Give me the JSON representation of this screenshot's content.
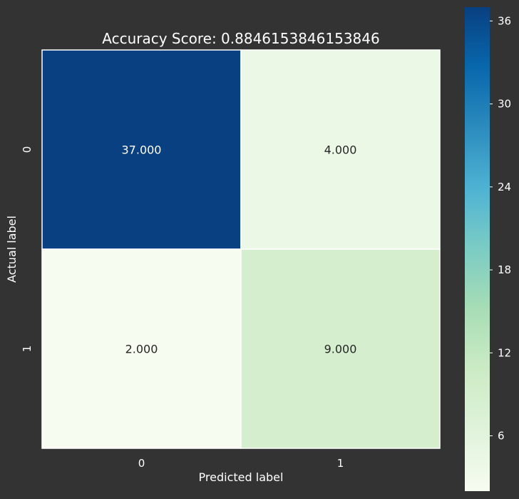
{
  "chart_data": {
    "type": "heatmap",
    "title": "Accuracy Score: 0.8846153846153846",
    "xlabel": "Predicted label",
    "ylabel": "Actual label",
    "x_categories": [
      "0",
      "1"
    ],
    "y_categories": [
      "0",
      "1"
    ],
    "values": [
      [
        37,
        4
      ],
      [
        2,
        9
      ]
    ],
    "cell_labels": [
      [
        "37.000",
        "4.000"
      ],
      [
        "2.000",
        "9.000"
      ]
    ],
    "colormap": "GnBu",
    "colorbar": {
      "range": [
        2,
        37
      ],
      "ticks": [
        6,
        12,
        18,
        24,
        30,
        36
      ],
      "tick_labels": [
        "6",
        "12",
        "18",
        "24",
        "30",
        "36"
      ],
      "position": "right"
    },
    "grid": false
  },
  "colors": {
    "background": "#333333",
    "text_light": "#ffffff",
    "text_dark": "#262626",
    "cell_border": "#ffffff"
  }
}
